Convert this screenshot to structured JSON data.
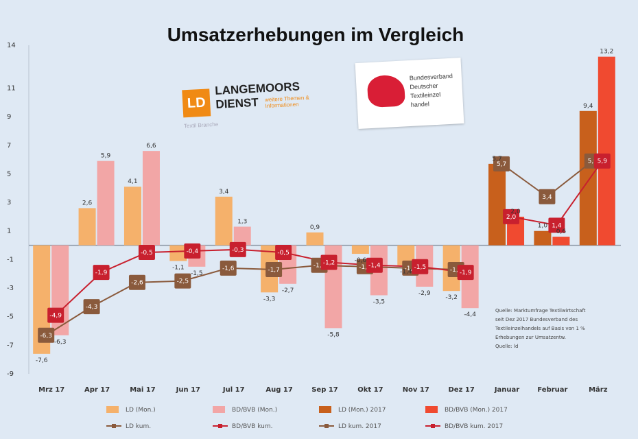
{
  "chart_data": {
    "type": "bar",
    "title": "Umsatzerhebungen im Vergleich",
    "ylim": [
      -9,
      14
    ],
    "yticks": [
      14,
      11,
      9,
      7,
      5,
      3,
      1,
      -1,
      -3,
      -5,
      -7,
      -9
    ],
    "categories": [
      "Mrz 17",
      "Apr 17",
      "Mai 17",
      "Jun 17",
      "Jul 17",
      "Aug 17",
      "Sep 17",
      "Okt 17",
      "Nov 17",
      "Dez 17",
      "Januar",
      "Februar",
      "März"
    ],
    "series": [
      {
        "name": "LD (Mon.)",
        "type": "bar",
        "color": "#f5b16b",
        "values": [
          -7.6,
          2.6,
          4.1,
          -1.1,
          3.4,
          -3.3,
          0.9,
          -0.6,
          -1.4,
          -3.2,
          null,
          null,
          null
        ]
      },
      {
        "name": "BD/BVB (Mon.)",
        "type": "bar",
        "color": "#f2a6a6",
        "values": [
          -6.3,
          5.9,
          6.6,
          -1.5,
          1.3,
          -2.7,
          -5.8,
          -3.5,
          -2.9,
          -4.4,
          null,
          null,
          null
        ]
      },
      {
        "name": "LD (Mon.) 2017",
        "type": "bar",
        "color": "#c8601c",
        "values": [
          null,
          null,
          null,
          null,
          null,
          null,
          null,
          null,
          null,
          null,
          5.7,
          1.0,
          9.4
        ]
      },
      {
        "name": "BD/BVB (Mon.) 2017",
        "type": "bar",
        "color": "#f04a30",
        "values": [
          null,
          null,
          null,
          null,
          null,
          null,
          null,
          null,
          null,
          null,
          2.0,
          0.6,
          13.2
        ]
      },
      {
        "name": "LD kum.",
        "type": "line",
        "color": "#8a5a3c",
        "values": [
          -6.3,
          -4.3,
          -2.6,
          -2.5,
          -1.6,
          -1.7,
          -1.4,
          -1.5,
          -1.6,
          -1.7,
          null,
          null,
          null
        ]
      },
      {
        "name": "BD/BVB kum.",
        "type": "line",
        "color": "#c8202e",
        "values": [
          -4.9,
          -1.9,
          -0.5,
          -0.4,
          -0.3,
          -0.5,
          -1.2,
          -1.4,
          -1.5,
          -1.9,
          null,
          null,
          null
        ]
      },
      {
        "name": "LD kum. 2017",
        "type": "line",
        "color": "#8a5a3c",
        "values": [
          null,
          null,
          null,
          null,
          null,
          null,
          null,
          null,
          null,
          null,
          5.7,
          3.4,
          5.9
        ]
      },
      {
        "name": "BD/BVB kum. 2017",
        "type": "line",
        "color": "#c8202e",
        "values": [
          null,
          null,
          null,
          null,
          null,
          null,
          null,
          null,
          null,
          null,
          2.0,
          1.4,
          5.9
        ]
      }
    ],
    "bar_labels": [
      [
        "-7,6",
        "2,6",
        "4,1",
        "-1,1",
        "3,4",
        "-3,3",
        "0,9",
        "-0,6",
        "-1,4",
        "-3,2",
        "5,7",
        "1,0",
        "9,4"
      ],
      [
        "-6,3",
        "5,9",
        "6,6",
        "-1,5",
        "1,3",
        "-2,7",
        "-5,8",
        "-3,5",
        "-2,9",
        "-4,4",
        "2,0",
        "0,6",
        "13,2"
      ]
    ],
    "marker_labels": [
      [
        "-6,3",
        "-4,3",
        "-2,6",
        "-2,5",
        "-1,6",
        "-1,7",
        "-1,4",
        "-1,5",
        "-1,6",
        "-1,7",
        "5,7",
        "3,4",
        "5,9"
      ],
      [
        "-4,9",
        "-1,9",
        "-0,5",
        "-0,4",
        "-0,3",
        "-0,5",
        "-1,2",
        "-1,4",
        "-1,5",
        "-1,9",
        "2,0",
        "1,4",
        "5,9"
      ]
    ],
    "legend_position": "bottom",
    "grid": false
  },
  "legend": [
    {
      "label": "LD (Mon.)",
      "kind": "bar",
      "color": "#f5b16b"
    },
    {
      "label": "BD/BVB (Mon.)",
      "kind": "bar",
      "color": "#f2a6a6"
    },
    {
      "label": "LD (Mon.) 2017",
      "kind": "bar",
      "color": "#c8601c"
    },
    {
      "label": "BD/BVB (Mon.) 2017",
      "kind": "bar",
      "color": "#f04a30"
    },
    {
      "label": "LD kum.",
      "kind": "line",
      "color": "#8a5a3c"
    },
    {
      "label": "BD/BVB kum.",
      "kind": "line",
      "color": "#c8202e"
    },
    {
      "label": "LD kum. 2017",
      "kind": "line",
      "color": "#8a5a3c"
    },
    {
      "label": "BD/BVB kum. 2017",
      "kind": "line",
      "color": "#c8202e"
    }
  ],
  "note": [
    "Quelle: Marktumfrage Textilwirtschaft",
    "seit Dez 2017 Bundesverband des",
    "Textileinzelhandels auf Basis von 1 %",
    "Erhebungen zur Umsatzentw.",
    "Quelle: ld"
  ],
  "logos": {
    "ld_mark": "LD",
    "ld_line1": "LANGEMOORS",
    "ld_line2": "DIENST",
    "ld_tagline": "weitere Themen & Informationen",
    "ld_sub": "Textil Branche",
    "bvb_lines": [
      "Bundesverband",
      "Deutscher",
      "Textileinzel",
      "handel"
    ]
  }
}
